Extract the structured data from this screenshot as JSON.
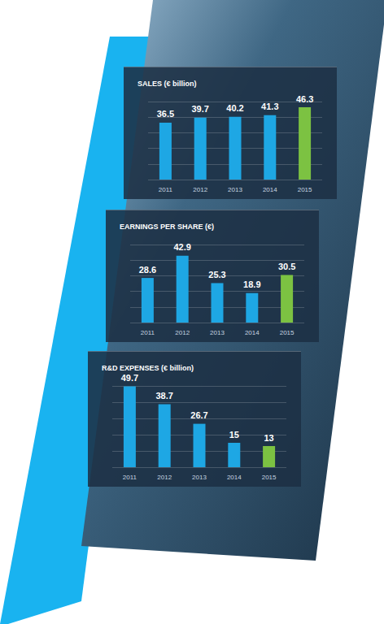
{
  "chart_data": [
    {
      "type": "bar",
      "title": "SALES (€ billion)",
      "categories": [
        "2011",
        "2012",
        "2013",
        "2014",
        "2015"
      ],
      "values": [
        36.5,
        39.7,
        40.2,
        41.3,
        46.3
      ],
      "colors": [
        "#1ea7e4",
        "#1ea7e4",
        "#1ea7e4",
        "#1ea7e4",
        "#7cc242"
      ],
      "ylim": [
        0,
        50
      ],
      "yticks": [
        0,
        10,
        20,
        30,
        40,
        50
      ],
      "grid": true,
      "data_labels": true,
      "tick_labels": "x"
    },
    {
      "type": "bar",
      "title": "EARNINGS PER SHARE (€)",
      "categories": [
        "2011",
        "2012",
        "2013",
        "2014",
        "2015"
      ],
      "values": [
        28.6,
        42.9,
        25.3,
        18.9,
        30.5
      ],
      "colors": [
        "#1ea7e4",
        "#1ea7e4",
        "#1ea7e4",
        "#1ea7e4",
        "#7cc242"
      ],
      "ylim": [
        0,
        50
      ],
      "yticks": [
        0,
        10,
        20,
        30,
        40,
        50
      ],
      "grid": true,
      "data_labels": true,
      "tick_labels": "x"
    },
    {
      "type": "bar",
      "title": "R&D EXPENSES (€ billion)",
      "categories": [
        "2011",
        "2012",
        "2013",
        "2014",
        "2015"
      ],
      "values": [
        49.7,
        38.7,
        26.7,
        15,
        13
      ],
      "colors": [
        "#1ea7e4",
        "#1ea7e4",
        "#1ea7e4",
        "#1ea7e4",
        "#7cc242"
      ],
      "ylim": [
        0,
        50
      ],
      "yticks": [
        0,
        10,
        20,
        30,
        40,
        50
      ],
      "grid": true,
      "data_labels": true,
      "tick_labels": "x"
    }
  ]
}
